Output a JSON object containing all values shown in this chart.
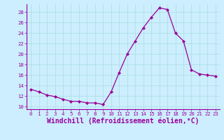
{
  "x": [
    0,
    1,
    2,
    3,
    4,
    5,
    6,
    7,
    8,
    9,
    10,
    11,
    12,
    13,
    14,
    15,
    16,
    17,
    18,
    19,
    20,
    21,
    22,
    23
  ],
  "y": [
    13.3,
    12.8,
    12.2,
    11.9,
    11.4,
    11.0,
    11.0,
    10.7,
    10.7,
    10.4,
    12.8,
    16.5,
    20.0,
    22.5,
    25.0,
    27.0,
    28.8,
    28.5,
    24.0,
    22.5,
    17.0,
    16.2,
    16.0,
    15.8
  ],
  "line_color": "#990099",
  "marker": "D",
  "marker_size": 2.2,
  "bg_color": "#cceeff",
  "grid_color": "#aadddd",
  "xlabel": "Windchill (Refroidissement éolien,°C)",
  "xlabel_color": "#990099",
  "xlim": [
    -0.5,
    23.5
  ],
  "ylim": [
    9.5,
    29.5
  ],
  "yticks": [
    10,
    12,
    14,
    16,
    18,
    20,
    22,
    24,
    26,
    28
  ],
  "xticks": [
    0,
    1,
    2,
    3,
    4,
    5,
    6,
    7,
    8,
    9,
    10,
    11,
    12,
    13,
    14,
    15,
    16,
    17,
    18,
    19,
    20,
    21,
    22,
    23
  ],
  "tick_color": "#990099",
  "tick_fontsize": 5.2,
  "xlabel_fontsize": 7.0
}
